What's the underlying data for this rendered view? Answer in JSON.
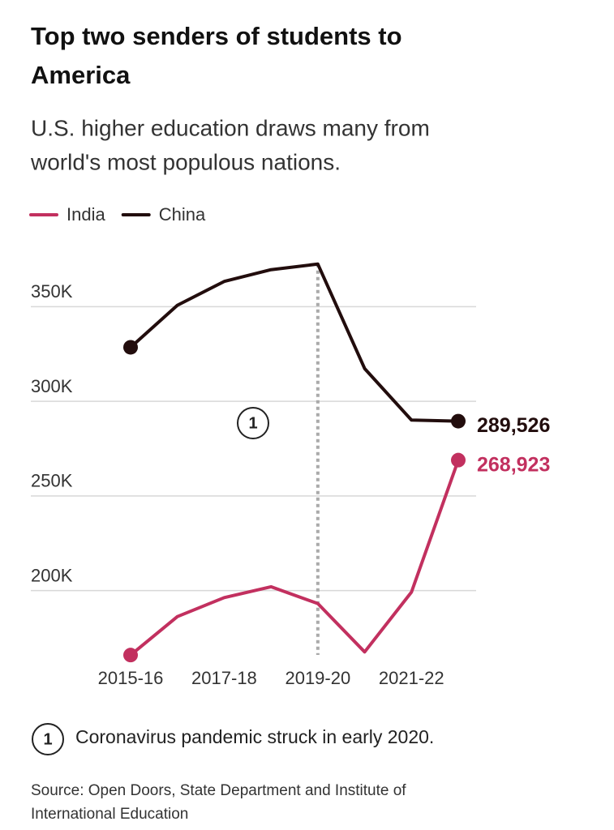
{
  "chart_data": {
    "type": "line",
    "title": [
      "Top two senders of students to",
      "America"
    ],
    "subtitle": [
      "U.S. higher education draws many from",
      "world's most populous nations."
    ],
    "categories": [
      "2015-16",
      null,
      "2017-18",
      null,
      "2019-20",
      null,
      "2021-22",
      null
    ],
    "series": [
      {
        "name": "India",
        "color": "#c2305f",
        "values": [
          165918,
          186267,
          196271,
          202014,
          193124,
          167582,
          199182,
          268923
        ],
        "value_labels": [
          null,
          null,
          null,
          null,
          null,
          null,
          null,
          "268,923"
        ]
      },
      {
        "name": "China",
        "color": "#220d0d",
        "values": [
          328547,
          350755,
          363341,
          369548,
          372532,
          317299,
          290086,
          289526
        ],
        "value_labels": [
          null,
          null,
          null,
          null,
          null,
          null,
          null,
          "289,526"
        ]
      }
    ],
    "ylim": [
      163000,
      375000
    ],
    "yticks": [
      {
        "value": 200000,
        "label": "200K"
      },
      {
        "value": 250000,
        "label": "250K"
      },
      {
        "value": 300000,
        "label": "300K"
      },
      {
        "value": 350000,
        "label": "350K"
      }
    ],
    "grid": true,
    "legend": "top-left",
    "annotation": {
      "marker": "1",
      "at": "2019-20",
      "text": "Coronavirus pandemic struck in early 2020."
    },
    "source": [
      "Source: Open Doors, State Department and Institute of",
      "International Education"
    ]
  }
}
